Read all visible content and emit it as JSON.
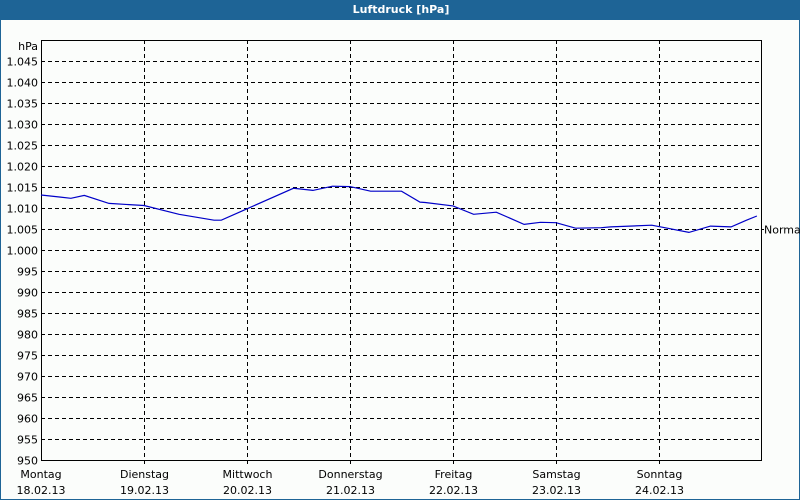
{
  "window": {
    "title": "Luftdruck [hPa]"
  },
  "colors": {
    "titlebar": "#1e6496",
    "line": "#0000c8",
    "background": "#fbfdfb",
    "grid": "#000000"
  },
  "chart_data": {
    "type": "line",
    "title": "Luftdruck [hPa]",
    "ylabel": "hPa",
    "xlabel": "",
    "ylim": [
      950,
      1050
    ],
    "yticks": [
      950,
      955,
      960,
      965,
      970,
      975,
      980,
      985,
      990,
      995,
      1000,
      1005,
      1010,
      1015,
      1020,
      1025,
      1030,
      1035,
      1040,
      1045
    ],
    "ytick_labels": [
      "950",
      "955",
      "960",
      "965",
      "970",
      "975",
      "980",
      "985",
      "990",
      "995",
      "1.000",
      "1.005",
      "1.010",
      "1.015",
      "1.020",
      "1.025",
      "1.030",
      "1.035",
      "1.040",
      "1.045"
    ],
    "x_categories": [
      {
        "day": "Montag",
        "date": "18.02.13"
      },
      {
        "day": "Dienstag",
        "date": "19.02.13"
      },
      {
        "day": "Mittwoch",
        "date": "20.02.13"
      },
      {
        "day": "Donnerstag",
        "date": "21.02.13"
      },
      {
        "day": "Freitag",
        "date": "22.02.13"
      },
      {
        "day": "Samstag",
        "date": "23.02.13"
      },
      {
        "day": "Sonntag",
        "date": "24.02.13"
      }
    ],
    "reference_line": {
      "label": "Normal",
      "value": 1005
    },
    "grid": true,
    "series": [
      {
        "name": "Luftdruck",
        "x_days": [
          0,
          0.19,
          0.29,
          0.42,
          0.66,
          1.0,
          1.34,
          1.68,
          1.75,
          2.0,
          2.45,
          2.64,
          2.83,
          3.0,
          3.2,
          3.5,
          3.68,
          3.73,
          4.0,
          4.2,
          4.42,
          4.69,
          4.85,
          5.0,
          5.19,
          5.44,
          5.53,
          5.93,
          6.29,
          6.5,
          6.7,
          6.85,
          6.95
        ],
        "values": [
          1013.1,
          1012.6,
          1012.3,
          1013.0,
          1011.1,
          1010.6,
          1008.5,
          1007.1,
          1007.1,
          1009.8,
          1014.7,
          1014.2,
          1015.2,
          1015.1,
          1014.0,
          1014.0,
          1011.4,
          1011.3,
          1010.5,
          1008.5,
          1009.0,
          1006.1,
          1006.6,
          1006.5,
          1005.2,
          1005.3,
          1005.5,
          1005.9,
          1004.2,
          1005.7,
          1005.5,
          1007.1,
          1008.1
        ]
      }
    ]
  }
}
